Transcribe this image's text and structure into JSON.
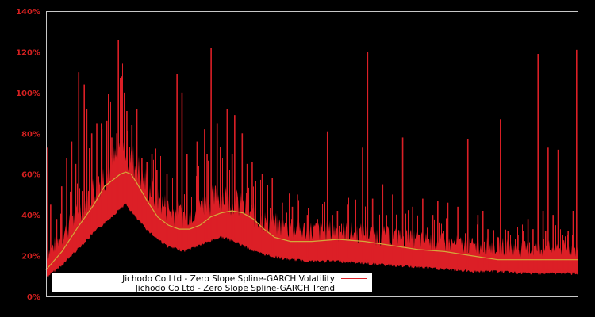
{
  "chart_data": {
    "type": "line",
    "title": "",
    "xlabel": "",
    "ylabel": "",
    "ylim": [
      0,
      140
    ],
    "y_ticks": [
      "0%",
      "20%",
      "40%",
      "60%",
      "80%",
      "100%",
      "120%",
      "140%"
    ],
    "y_tick_values": [
      0,
      20,
      40,
      60,
      80,
      100,
      120,
      140
    ],
    "grid": false,
    "legend_position": "lower-left",
    "colors": {
      "background": "#000000",
      "frame": "#c8c8c8",
      "tick_label": "#d42020",
      "volatility": "#dc1f26",
      "trend": "#d4a93a",
      "legend_bg": "#ffffff"
    },
    "series": [
      {
        "name": "Jichodo Co Ltd - Zero Slope Spline-GARCH Volatility",
        "color": "#dc1f26",
        "note": "x as fraction of time range (0..1), baseline floor and spike peaks in %",
        "baseline": [
          [
            0.0,
            11
          ],
          [
            0.03,
            17
          ],
          [
            0.06,
            25
          ],
          [
            0.09,
            33
          ],
          [
            0.12,
            40
          ],
          [
            0.14,
            45
          ],
          [
            0.15,
            47
          ],
          [
            0.17,
            40
          ],
          [
            0.2,
            32
          ],
          [
            0.23,
            26
          ],
          [
            0.26,
            24
          ],
          [
            0.29,
            27
          ],
          [
            0.33,
            31
          ],
          [
            0.36,
            28
          ],
          [
            0.4,
            23
          ],
          [
            0.45,
            20
          ],
          [
            0.5,
            19
          ],
          [
            0.55,
            19
          ],
          [
            0.6,
            18
          ],
          [
            0.65,
            17
          ],
          [
            0.7,
            16
          ],
          [
            0.75,
            15
          ],
          [
            0.8,
            14
          ],
          [
            0.85,
            14
          ],
          [
            0.9,
            13
          ],
          [
            0.95,
            13
          ],
          [
            1.0,
            13
          ]
        ],
        "spikes": [
          [
            0.002,
            73
          ],
          [
            0.008,
            45
          ],
          [
            0.02,
            38
          ],
          [
            0.03,
            54
          ],
          [
            0.04,
            68
          ],
          [
            0.05,
            76
          ],
          [
            0.058,
            65
          ],
          [
            0.064,
            110
          ],
          [
            0.075,
            104
          ],
          [
            0.08,
            92
          ],
          [
            0.09,
            80
          ],
          [
            0.1,
            85
          ],
          [
            0.11,
            82
          ],
          [
            0.12,
            86
          ],
          [
            0.13,
            78
          ],
          [
            0.14,
            80
          ],
          [
            0.143,
            126
          ],
          [
            0.15,
            108
          ],
          [
            0.155,
            100
          ],
          [
            0.16,
            91
          ],
          [
            0.17,
            84
          ],
          [
            0.18,
            92
          ],
          [
            0.19,
            68
          ],
          [
            0.2,
            66
          ],
          [
            0.21,
            70
          ],
          [
            0.22,
            62
          ],
          [
            0.24,
            60
          ],
          [
            0.26,
            109
          ],
          [
            0.27,
            100
          ],
          [
            0.28,
            70
          ],
          [
            0.3,
            76
          ],
          [
            0.315,
            82
          ],
          [
            0.32,
            70
          ],
          [
            0.328,
            122
          ],
          [
            0.34,
            85
          ],
          [
            0.36,
            92
          ],
          [
            0.37,
            70
          ],
          [
            0.375,
            89
          ],
          [
            0.39,
            80
          ],
          [
            0.4,
            65
          ],
          [
            0.41,
            66
          ],
          [
            0.43,
            60
          ],
          [
            0.45,
            58
          ],
          [
            0.47,
            46
          ],
          [
            0.49,
            44
          ],
          [
            0.5,
            50
          ],
          [
            0.52,
            40
          ],
          [
            0.54,
            38
          ],
          [
            0.56,
            81
          ],
          [
            0.57,
            40
          ],
          [
            0.58,
            42
          ],
          [
            0.6,
            45
          ],
          [
            0.63,
            73
          ],
          [
            0.64,
            120
          ],
          [
            0.65,
            48
          ],
          [
            0.67,
            55
          ],
          [
            0.69,
            50
          ],
          [
            0.71,
            78
          ],
          [
            0.73,
            44
          ],
          [
            0.75,
            48
          ],
          [
            0.77,
            40
          ],
          [
            0.78,
            47
          ],
          [
            0.8,
            46
          ],
          [
            0.82,
            44
          ],
          [
            0.84,
            77
          ],
          [
            0.86,
            40
          ],
          [
            0.87,
            42
          ],
          [
            0.88,
            33
          ],
          [
            0.905,
            87
          ],
          [
            0.92,
            32
          ],
          [
            0.94,
            30
          ],
          [
            0.95,
            32
          ],
          [
            0.96,
            38
          ],
          [
            0.97,
            33
          ],
          [
            0.98,
            119
          ],
          [
            0.99,
            42
          ],
          [
            0.995,
            32
          ],
          [
            1.0,
            73
          ],
          [
            1.01,
            40
          ],
          [
            1.02,
            72
          ],
          [
            1.03,
            27
          ],
          [
            1.04,
            32
          ],
          [
            1.05,
            42
          ],
          [
            1.06,
            121
          ]
        ]
      },
      {
        "name": "Jichodo Co Ltd - Zero Slope Spline-GARCH Trend",
        "color": "#d4a93a",
        "points": [
          [
            0.0,
            13
          ],
          [
            0.03,
            22
          ],
          [
            0.06,
            34
          ],
          [
            0.09,
            45
          ],
          [
            0.11,
            54
          ],
          [
            0.13,
            58
          ],
          [
            0.14,
            60
          ],
          [
            0.15,
            61
          ],
          [
            0.16,
            60
          ],
          [
            0.17,
            56
          ],
          [
            0.19,
            47
          ],
          [
            0.21,
            39
          ],
          [
            0.23,
            35
          ],
          [
            0.25,
            33
          ],
          [
            0.27,
            33
          ],
          [
            0.29,
            35
          ],
          [
            0.31,
            39
          ],
          [
            0.33,
            41
          ],
          [
            0.35,
            42
          ],
          [
            0.37,
            41
          ],
          [
            0.39,
            38
          ],
          [
            0.41,
            33
          ],
          [
            0.43,
            29
          ],
          [
            0.46,
            27
          ],
          [
            0.5,
            27
          ],
          [
            0.55,
            28
          ],
          [
            0.6,
            27
          ],
          [
            0.65,
            25
          ],
          [
            0.7,
            23
          ],
          [
            0.75,
            22
          ],
          [
            0.8,
            20
          ],
          [
            0.85,
            18
          ],
          [
            0.9,
            18
          ],
          [
            0.95,
            18
          ],
          [
            1.0,
            18
          ]
        ]
      }
    ]
  },
  "legend": {
    "items": [
      {
        "label": "Jichodo Co Ltd - Zero Slope Spline-GARCH Volatility",
        "color": "#dc1f26"
      },
      {
        "label": "Jichodo Co Ltd - Zero Slope Spline-GARCH Trend",
        "color": "#d4a93a"
      }
    ]
  }
}
